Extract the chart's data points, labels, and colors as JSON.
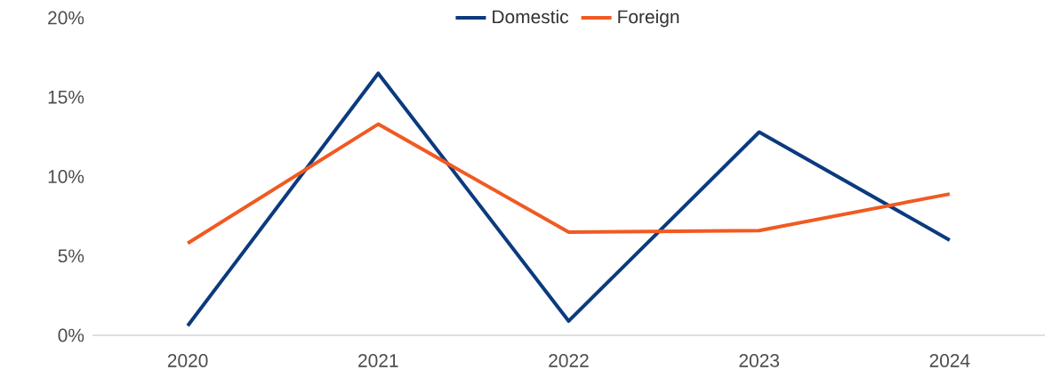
{
  "chart_data": {
    "type": "line",
    "categories": [
      "2020",
      "2021",
      "2022",
      "2023",
      "2024"
    ],
    "series": [
      {
        "name": "Domestic",
        "color": "#0b3a7e",
        "values": [
          0.6,
          16.5,
          0.9,
          12.8,
          6.0
        ]
      },
      {
        "name": "Foreign",
        "color": "#f05a22",
        "values": [
          5.8,
          13.3,
          6.5,
          6.6,
          8.9
        ]
      }
    ],
    "ylim": [
      0,
      20
    ],
    "yticks": [
      {
        "value": 0,
        "label": "0%"
      },
      {
        "value": 5,
        "label": "5%"
      },
      {
        "value": 10,
        "label": "10%"
      },
      {
        "value": 15,
        "label": "15%"
      },
      {
        "value": 20,
        "label": "20%"
      }
    ],
    "legend": "top"
  }
}
